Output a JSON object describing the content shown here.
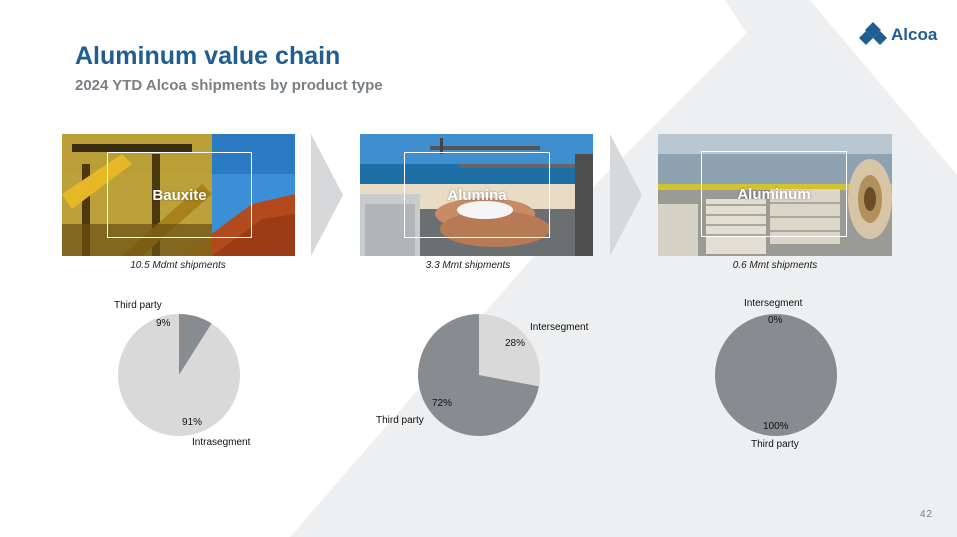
{
  "header": {
    "title": "Aluminum value chain",
    "subtitle": "2024 YTD Alcoa shipments by product type"
  },
  "logo": {
    "text": "Alcoa",
    "icon": "alcoa-diamond-logo"
  },
  "colors": {
    "brand_blue": "#1f5d92",
    "pie_dark": "#868c90",
    "pie_light": "#d9d9d9",
    "chevron": "#d6d8da"
  },
  "segments": [
    {
      "name": "Bauxite",
      "shipments": "10.5 Mdmt shipments",
      "chart_data": {
        "type": "pie",
        "labels": [
          "Third party",
          "Intrasegment"
        ],
        "values": [
          9,
          91
        ],
        "value_labels": [
          "9%",
          "91%"
        ],
        "colors": [
          "#868c90",
          "#d9d9d9"
        ]
      }
    },
    {
      "name": "Alumina",
      "shipments": "3.3 Mmt shipments",
      "chart_data": {
        "type": "pie",
        "labels": [
          "Intersegment",
          "Third party"
        ],
        "values": [
          28,
          72
        ],
        "value_labels": [
          "28%",
          "72%"
        ],
        "colors": [
          "#d9d9d9",
          "#868c90"
        ]
      }
    },
    {
      "name": "Aluminum",
      "shipments": "0.6 Mmt shipments",
      "chart_data": {
        "type": "pie",
        "labels": [
          "Intersegment",
          "Third party"
        ],
        "values": [
          0,
          100
        ],
        "value_labels": [
          "0%",
          "100%"
        ],
        "colors": [
          "#d9d9d9",
          "#868c90"
        ]
      }
    }
  ],
  "footer": {
    "page_number": "42"
  }
}
